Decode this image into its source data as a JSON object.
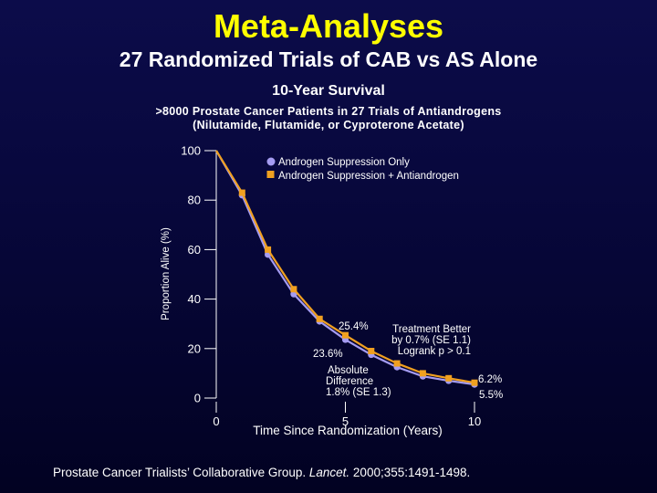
{
  "slide": {
    "title": "Meta-Analyses",
    "subtitle": "27 Randomized Trials of CAB vs AS Alone",
    "citation_prefix": "Prostate Cancer Trialists’ Collaborative Group. ",
    "citation_journal": "Lancet.",
    "citation_suffix": " 2000;355:1491-1498."
  },
  "colors": {
    "title": "#ffff00",
    "series_as": "#a59cf2",
    "series_cab": "#f0a020",
    "axis": "#ffffff"
  },
  "chart_data": {
    "type": "line",
    "title": "10-Year Survival",
    "subtitle_lines": [
      ">8000 Prostate Cancer Patients in 27 Trials of Antiandrogens",
      "(Nilutamide, Flutamide, or Cyproterone Acetate)"
    ],
    "xlabel": "Time Since Randomization (Years)",
    "ylabel": "Proportion Alive (%)",
    "xlim": [
      0,
      10
    ],
    "ylim": [
      0,
      100
    ],
    "x_ticks": [
      0,
      5,
      10
    ],
    "y_ticks": [
      0,
      20,
      40,
      60,
      80,
      100
    ],
    "legend_position": "top-right",
    "series": [
      {
        "name": "Androgen Suppression Only",
        "marker": "circle",
        "x": [
          0,
          1,
          2,
          3,
          4,
          5,
          6,
          7,
          8,
          9,
          10
        ],
        "y": [
          100,
          82,
          58,
          42,
          31,
          23.6,
          17.5,
          12.5,
          8.8,
          7.0,
          5.5
        ]
      },
      {
        "name": "Androgen Suppression + Antiandrogen",
        "marker": "square",
        "x": [
          0,
          1,
          2,
          3,
          4,
          5,
          6,
          7,
          8,
          9,
          10
        ],
        "y": [
          100,
          83,
          60,
          44,
          32,
          25.4,
          19,
          14,
          10,
          8,
          6.2
        ]
      }
    ],
    "annotations": [
      {
        "key": "cab_end_label",
        "text": "25.4%"
      },
      {
        "key": "as_end_label",
        "text": "23.6%"
      },
      {
        "key": "difference",
        "lines": [
          "Absolute",
          "Difference",
          "1.8% (SE 1.3)"
        ]
      },
      {
        "key": "treatment_better",
        "lines": [
          "Treatment Better",
          "by 0.7% (SE 1.1)",
          "Logrank p > 0.1"
        ]
      },
      {
        "key": "cab_10yr",
        "text": "6.2%"
      },
      {
        "key": "as_10yr",
        "text": "5.5%"
      }
    ]
  }
}
